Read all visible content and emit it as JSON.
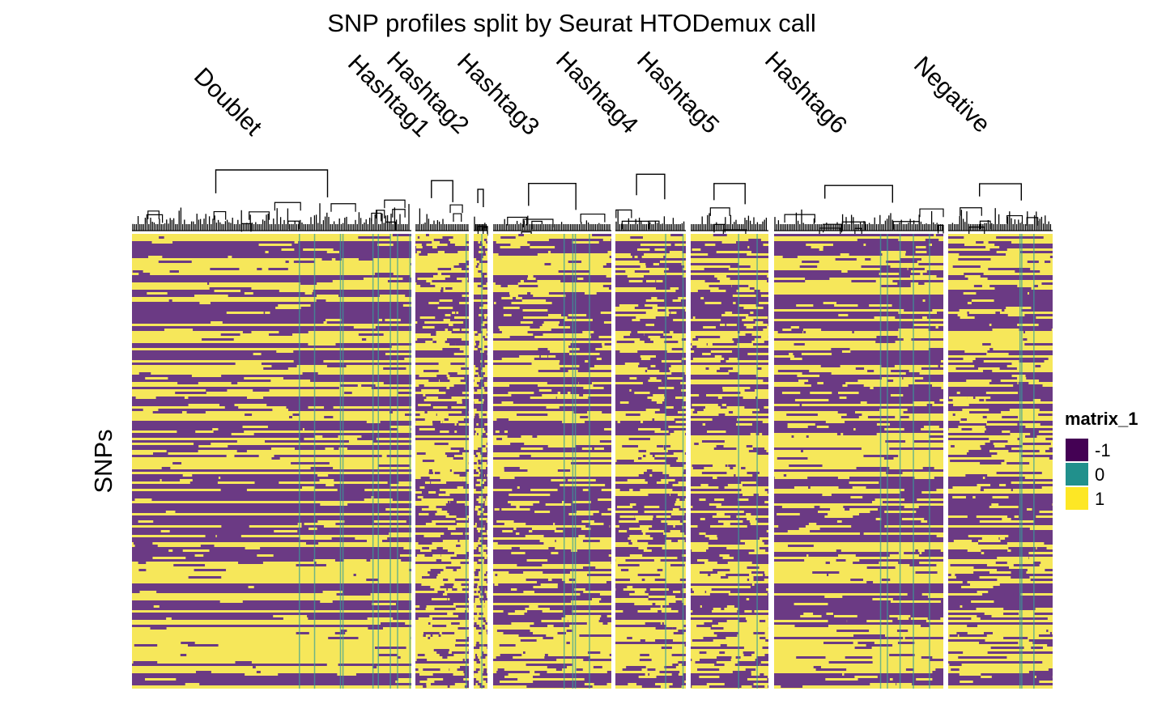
{
  "chart_data": {
    "type": "heatmap",
    "title": "SNP profiles split by Seurat HTODemux call",
    "ylabel": "SNPs",
    "column_groups": [
      "Doublet",
      "Hashtag1",
      "Hashtag2",
      "Hashtag3",
      "Hashtag4",
      "Hashtag5",
      "Hashtag6",
      "Negative"
    ],
    "legend": {
      "title": "matrix_1",
      "placement": "right",
      "entries": [
        {
          "label": "-1",
          "value": -1,
          "color": "#440154"
        },
        {
          "label": "0",
          "value": 0,
          "color": "#21908C"
        },
        {
          "label": "1",
          "value": 1,
          "color": "#FDE725"
        }
      ]
    },
    "dendrogram": "top",
    "value_colors": {
      "-1": "#6b3a84",
      "0": "#35a09a",
      "1": "#f6e75a"
    }
  }
}
